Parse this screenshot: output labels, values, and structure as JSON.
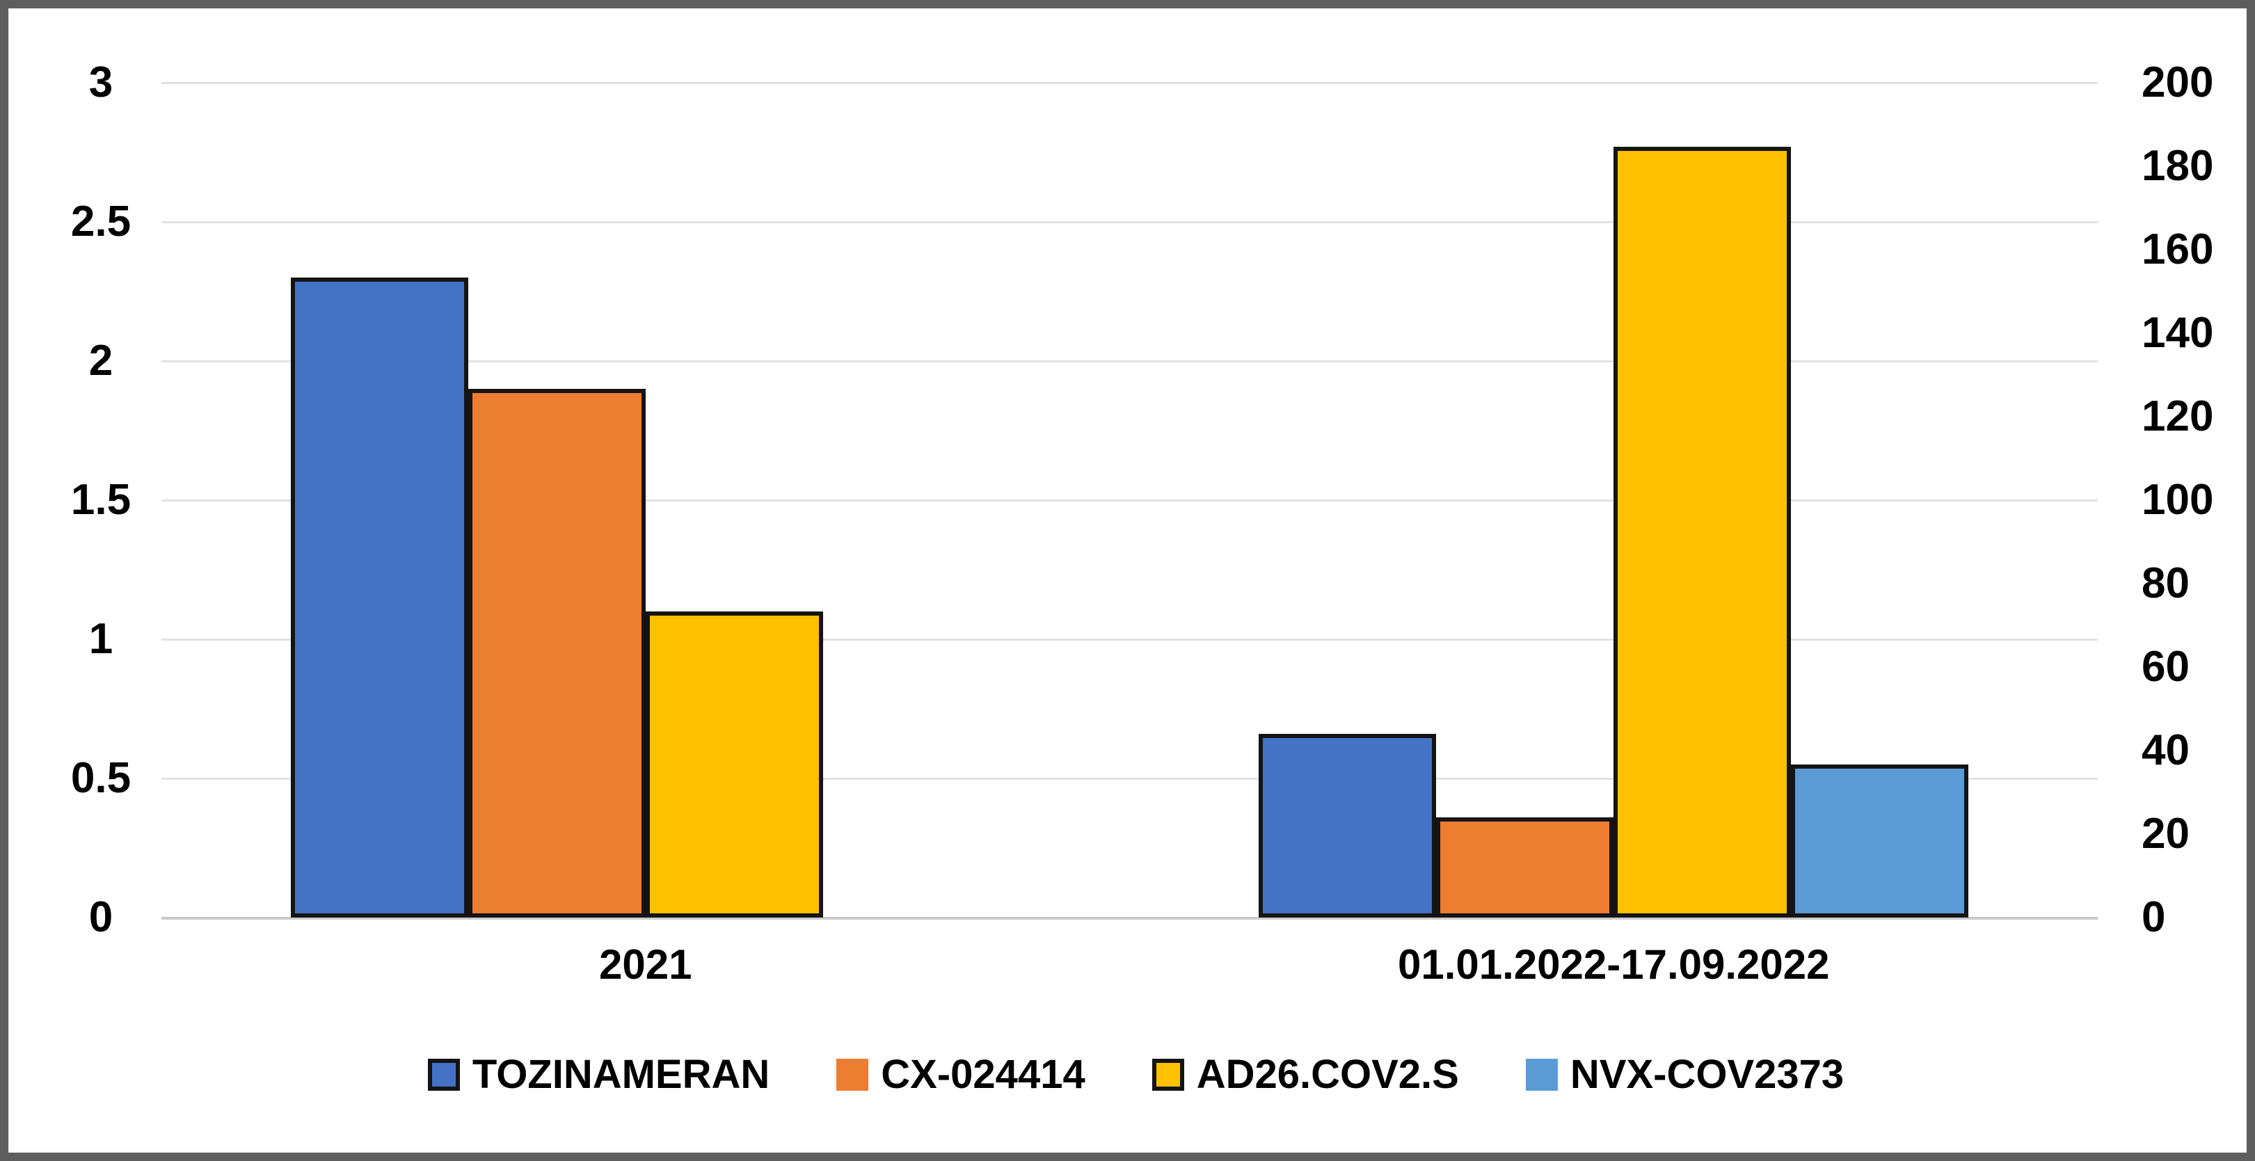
{
  "chart_data": {
    "type": "bar",
    "title": "",
    "categories": [
      "2021",
      "01.01.2022-17.09.2022"
    ],
    "series": [
      {
        "name": "TOZINAMERAN",
        "color": "#4472C4",
        "swatch_border": true,
        "values": [
          2.3,
          0.66
        ]
      },
      {
        "name": "CX-024414",
        "color": "#ED7D31",
        "swatch_border": false,
        "values": [
          1.9,
          0.36
        ]
      },
      {
        "name": "AD26.COV2.S",
        "color": "#FFC000",
        "swatch_border": true,
        "values": [
          1.1,
          2.77
        ]
      },
      {
        "name": "NVX-COV2373",
        "color": "#5B9BD5",
        "swatch_border": false,
        "values": [
          0,
          0.55
        ]
      }
    ],
    "left_axis": {
      "min": 0,
      "max": 3,
      "step": 0.5,
      "tick_labels": [
        "3",
        "2.5",
        "2",
        "1.5",
        "1",
        "0.5",
        "0"
      ]
    },
    "right_axis": {
      "min": 0,
      "max": 200,
      "step": 20,
      "tick_labels": [
        "200",
        "180",
        "160",
        "140",
        "120",
        "100",
        "80",
        "60",
        "40",
        "20",
        "0"
      ]
    },
    "bar_border_color": "#141414",
    "gridline_color": "#e2e2e2",
    "grid": "horizontal gridlines aligned to left axis 0.5 steps",
    "legend_position": "bottom-center",
    "frame_border_color": "#5e5e5e",
    "background_color": "#ffffff"
  }
}
